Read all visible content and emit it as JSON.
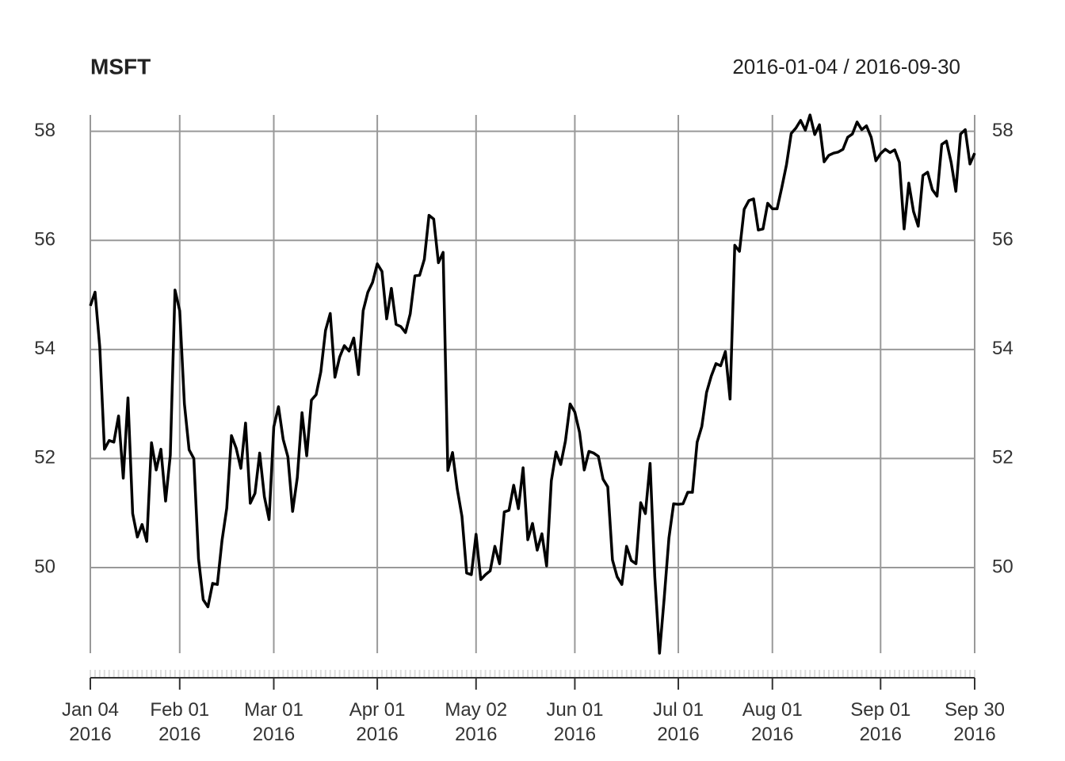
{
  "chart_data": {
    "type": "line",
    "title": "MSFT",
    "subtitle": "2016-01-04 / 2016-09-30",
    "x": [
      "2016-01-04",
      "2016-01-05",
      "2016-01-06",
      "2016-01-07",
      "2016-01-08",
      "2016-01-11",
      "2016-01-12",
      "2016-01-13",
      "2016-01-14",
      "2016-01-15",
      "2016-01-19",
      "2016-01-20",
      "2016-01-21",
      "2016-01-22",
      "2016-01-25",
      "2016-01-26",
      "2016-01-27",
      "2016-01-28",
      "2016-01-29",
      "2016-02-01",
      "2016-02-02",
      "2016-02-03",
      "2016-02-04",
      "2016-02-05",
      "2016-02-08",
      "2016-02-09",
      "2016-02-10",
      "2016-02-11",
      "2016-02-12",
      "2016-02-16",
      "2016-02-17",
      "2016-02-18",
      "2016-02-19",
      "2016-02-22",
      "2016-02-23",
      "2016-02-24",
      "2016-02-25",
      "2016-02-26",
      "2016-02-29",
      "2016-03-01",
      "2016-03-02",
      "2016-03-03",
      "2016-03-04",
      "2016-03-07",
      "2016-03-08",
      "2016-03-09",
      "2016-03-10",
      "2016-03-11",
      "2016-03-14",
      "2016-03-15",
      "2016-03-16",
      "2016-03-17",
      "2016-03-18",
      "2016-03-21",
      "2016-03-22",
      "2016-03-23",
      "2016-03-24",
      "2016-03-28",
      "2016-03-29",
      "2016-03-30",
      "2016-03-31",
      "2016-04-01",
      "2016-04-04",
      "2016-04-05",
      "2016-04-06",
      "2016-04-07",
      "2016-04-08",
      "2016-04-11",
      "2016-04-12",
      "2016-04-13",
      "2016-04-14",
      "2016-04-15",
      "2016-04-18",
      "2016-04-19",
      "2016-04-20",
      "2016-04-21",
      "2016-04-22",
      "2016-04-25",
      "2016-04-26",
      "2016-04-27",
      "2016-04-28",
      "2016-04-29",
      "2016-05-02",
      "2016-05-03",
      "2016-05-04",
      "2016-05-05",
      "2016-05-06",
      "2016-05-09",
      "2016-05-10",
      "2016-05-11",
      "2016-05-12",
      "2016-05-13",
      "2016-05-16",
      "2016-05-17",
      "2016-05-18",
      "2016-05-19",
      "2016-05-20",
      "2016-05-23",
      "2016-05-24",
      "2016-05-25",
      "2016-05-26",
      "2016-05-27",
      "2016-05-31",
      "2016-06-01",
      "2016-06-02",
      "2016-06-03",
      "2016-06-06",
      "2016-06-07",
      "2016-06-08",
      "2016-06-09",
      "2016-06-10",
      "2016-06-13",
      "2016-06-14",
      "2016-06-15",
      "2016-06-16",
      "2016-06-17",
      "2016-06-20",
      "2016-06-21",
      "2016-06-22",
      "2016-06-23",
      "2016-06-24",
      "2016-06-27",
      "2016-06-28",
      "2016-06-29",
      "2016-06-30",
      "2016-07-01",
      "2016-07-05",
      "2016-07-06",
      "2016-07-07",
      "2016-07-08",
      "2016-07-11",
      "2016-07-12",
      "2016-07-13",
      "2016-07-14",
      "2016-07-15",
      "2016-07-18",
      "2016-07-19",
      "2016-07-20",
      "2016-07-21",
      "2016-07-22",
      "2016-07-25",
      "2016-07-26",
      "2016-07-27",
      "2016-07-28",
      "2016-07-29",
      "2016-08-01",
      "2016-08-02",
      "2016-08-03",
      "2016-08-04",
      "2016-08-05",
      "2016-08-08",
      "2016-08-09",
      "2016-08-10",
      "2016-08-11",
      "2016-08-12",
      "2016-08-15",
      "2016-08-16",
      "2016-08-17",
      "2016-08-18",
      "2016-08-19",
      "2016-08-22",
      "2016-08-23",
      "2016-08-24",
      "2016-08-25",
      "2016-08-26",
      "2016-08-29",
      "2016-08-30",
      "2016-08-31",
      "2016-09-01",
      "2016-09-02",
      "2016-09-06",
      "2016-09-07",
      "2016-09-08",
      "2016-09-09",
      "2016-09-12",
      "2016-09-13",
      "2016-09-14",
      "2016-09-15",
      "2016-09-16",
      "2016-09-19",
      "2016-09-20",
      "2016-09-21",
      "2016-09-22",
      "2016-09-23",
      "2016-09-26",
      "2016-09-27",
      "2016-09-28",
      "2016-09-29",
      "2016-09-30"
    ],
    "values": [
      54.8,
      55.05,
      54.05,
      52.17,
      52.33,
      52.3,
      52.78,
      51.64,
      53.11,
      50.99,
      50.56,
      50.79,
      50.48,
      52.29,
      51.79,
      52.17,
      51.22,
      52.06,
      55.09,
      54.71,
      53.0,
      52.16,
      52.0,
      50.16,
      49.41,
      49.28,
      49.71,
      49.69,
      50.5,
      51.09,
      52.42,
      52.19,
      51.82,
      52.65,
      51.18,
      51.36,
      52.1,
      51.3,
      50.88,
      52.58,
      52.95,
      52.35,
      52.03,
      51.03,
      51.65,
      52.84,
      52.05,
      53.07,
      53.17,
      53.59,
      54.35,
      54.66,
      53.49,
      53.86,
      54.07,
      53.97,
      54.21,
      53.54,
      54.71,
      55.05,
      55.23,
      55.57,
      55.43,
      54.56,
      55.12,
      54.46,
      54.42,
      54.31,
      54.65,
      55.35,
      55.36,
      55.65,
      56.46,
      56.39,
      55.59,
      55.78,
      51.78,
      52.11,
      51.44,
      50.94,
      49.9,
      49.87,
      50.61,
      49.78,
      49.87,
      49.94,
      50.39,
      50.07,
      51.02,
      51.05,
      51.51,
      51.08,
      51.83,
      50.51,
      50.81,
      50.32,
      50.62,
      50.03,
      51.59,
      52.12,
      51.89,
      52.32,
      53.0,
      52.85,
      52.48,
      51.79,
      52.13,
      52.1,
      52.04,
      51.62,
      51.48,
      50.14,
      49.83,
      49.69,
      50.39,
      50.13,
      50.07,
      51.19,
      50.99,
      51.91,
      49.83,
      48.43,
      49.44,
      50.54,
      51.17,
      51.16,
      51.17,
      51.38,
      51.38,
      52.3,
      52.59,
      53.21,
      53.51,
      53.74,
      53.7,
      53.96,
      53.09,
      55.91,
      55.8,
      56.57,
      56.73,
      56.76,
      56.19,
      56.21,
      56.68,
      56.58,
      56.58,
      56.97,
      57.39,
      57.96,
      58.06,
      58.2,
      58.02,
      58.3,
      57.94,
      58.12,
      57.44,
      57.56,
      57.6,
      57.62,
      57.67,
      57.89,
      57.95,
      58.17,
      58.03,
      58.1,
      57.89,
      57.46,
      57.59,
      57.67,
      57.61,
      57.66,
      57.43,
      56.21,
      57.05,
      56.53,
      56.26,
      57.19,
      57.25,
      56.93,
      56.81,
      57.76,
      57.82,
      57.43,
      56.9,
      57.95,
      58.03,
      57.4,
      57.6
    ],
    "color": "#000000",
    "ylim": [
      48.43,
      58.3
    ],
    "yticks": [
      50,
      52,
      54,
      56,
      58
    ],
    "xticks": [
      {
        "value": "2016-01-04",
        "label": "Jan 04\n2016"
      },
      {
        "value": "2016-02-01",
        "label": "Feb 01\n2016"
      },
      {
        "value": "2016-03-01",
        "label": "Mar 01\n2016"
      },
      {
        "value": "2016-04-01",
        "label": "Apr 01\n2016"
      },
      {
        "value": "2016-05-02",
        "label": "May 02\n2016"
      },
      {
        "value": "2016-06-01",
        "label": "Jun 01\n2016"
      },
      {
        "value": "2016-07-01",
        "label": "Jul 01\n2016"
      },
      {
        "value": "2016-08-01",
        "label": "Aug 01\n2016"
      },
      {
        "value": "2016-09-01",
        "label": "Sep 01\n2016"
      },
      {
        "value": "2016-09-30",
        "label": "Sep 30\n2016"
      }
    ],
    "grid": true
  }
}
